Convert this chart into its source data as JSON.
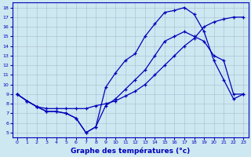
{
  "bg_color": "#cde8f0",
  "line_color": "#0000bb",
  "grid_color": "#aabbd0",
  "xlabel": "Graphe des températures (°c)",
  "xlim": [
    -0.5,
    23.5
  ],
  "ylim": [
    4.5,
    18.5
  ],
  "yticks": [
    5,
    6,
    7,
    8,
    9,
    10,
    11,
    12,
    13,
    14,
    15,
    16,
    17,
    18
  ],
  "xticks": [
    0,
    1,
    2,
    3,
    4,
    5,
    6,
    7,
    8,
    9,
    10,
    11,
    12,
    13,
    14,
    15,
    16,
    17,
    18,
    19,
    20,
    21,
    22,
    23
  ],
  "line1_x": [
    0,
    1,
    2,
    3,
    4,
    5,
    6,
    7,
    8,
    9,
    10,
    11,
    12,
    13,
    14,
    15,
    16,
    17,
    18,
    19,
    20,
    21,
    22,
    23
  ],
  "line1_y": [
    9,
    8.3,
    7.7,
    7.2,
    7.2,
    7.0,
    6.5,
    5.0,
    5.6,
    9.7,
    11.2,
    12.5,
    13.2,
    15.0,
    16.3,
    17.5,
    17.7,
    18.0,
    17.3,
    15.5,
    12.5,
    10.5,
    8.5,
    9.0
  ],
  "line2_x": [
    0,
    1,
    2,
    3,
    4,
    5,
    6,
    7,
    8,
    9,
    10,
    11,
    12,
    13,
    14,
    15,
    16,
    17,
    18,
    19,
    20,
    21,
    22,
    23
  ],
  "line2_y": [
    9,
    8.3,
    7.7,
    7.5,
    7.5,
    7.5,
    7.5,
    7.5,
    7.8,
    8.0,
    8.3,
    8.8,
    9.3,
    10.0,
    11.0,
    12.0,
    13.0,
    14.0,
    14.8,
    16.0,
    16.5,
    16.8,
    17.0,
    17.0
  ],
  "line3_x": [
    0,
    1,
    2,
    3,
    4,
    5,
    6,
    7,
    8,
    9,
    10,
    11,
    12,
    13,
    14,
    15,
    16,
    17,
    18,
    19,
    20,
    21,
    22,
    23
  ],
  "line3_y": [
    9,
    8.3,
    7.7,
    7.2,
    7.2,
    7.0,
    6.5,
    5.0,
    5.6,
    7.8,
    8.5,
    9.5,
    10.5,
    11.5,
    13.0,
    14.5,
    15.0,
    15.5,
    15.0,
    14.5,
    13.0,
    12.5,
    9.0,
    9.0
  ],
  "figwidth": 3.2,
  "figheight": 2.0,
  "dpi": 100
}
